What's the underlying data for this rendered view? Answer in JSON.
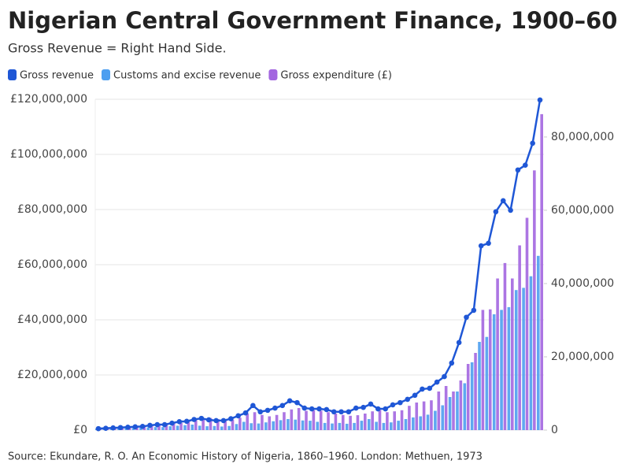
{
  "chart_data": {
    "type": "bar",
    "title": "Nigerian Central Government Finance, 1900–60",
    "subtitle": "Gross Revenue = Right Hand Side.",
    "source": "Source: Ekundare, R. O. An Economic History of Nigeria, 1860–1960. London: Methuen, 1973",
    "categories": [
      null,
      null,
      null,
      null,
      null,
      null,
      null,
      null,
      null,
      null,
      null,
      null,
      null,
      null,
      null,
      null,
      null,
      null,
      null,
      null,
      null,
      null,
      null,
      null,
      null,
      null,
      null,
      null,
      null,
      null,
      null,
      null,
      null,
      null,
      null,
      null,
      null,
      null,
      null,
      null,
      null,
      null,
      null,
      null,
      null,
      null,
      null,
      null,
      null,
      null,
      null,
      null,
      null,
      null,
      null,
      null,
      null,
      null,
      null,
      null,
      null
    ],
    "ylim": [
      0,
      120000000
    ],
    "yticks": [
      {
        "value": 0,
        "label": "£0"
      },
      {
        "value": 20000000,
        "label": "£20,000,000"
      },
      {
        "value": 40000000,
        "label": "£40,000,000"
      },
      {
        "value": 60000000,
        "label": "£60,000,000"
      },
      {
        "value": 80000000,
        "label": "£80,000,000"
      },
      {
        "value": 100000000,
        "label": "£100,000,000"
      },
      {
        "value": 120000000,
        "label": "£120,000,000"
      }
    ],
    "y2lim": [
      0,
      90300000
    ],
    "y2ticks": [
      0,
      {
        "value": 20000000,
        "label": "20,000,000"
      },
      {
        "value": 40000000,
        "label": "40,000,000"
      },
      {
        "value": 60000000,
        "label": "60,000,000"
      },
      {
        "value": 80000000,
        "label": "80,000,000"
      }
    ],
    "grid": true,
    "series": [
      {
        "name": "Gross revenue",
        "type": "line",
        "axis": "y2",
        "color": "#1f57d6",
        "values": [
          400000,
          500000,
          600000,
          700000,
          800000,
          900000,
          1000000,
          1300000,
          1500000,
          1500000,
          1900000,
          2300000,
          2400000,
          2900000,
          3200000,
          2800000,
          2600000,
          2600000,
          3100000,
          3900000,
          4700000,
          6700000,
          5000000,
          5400000,
          6000000,
          6700000,
          8000000,
          7500000,
          6000000,
          5800000,
          5800000,
          5600000,
          5000000,
          5000000,
          5000000,
          6000000,
          6200000,
          7100000,
          5800000,
          5800000,
          6900000,
          7500000,
          8400000,
          9500000,
          11200000,
          11400000,
          13100000,
          14600000,
          18300000,
          23900000,
          30800000,
          32700000,
          50300000,
          51000000,
          59600000,
          62600000,
          60000000,
          71000000,
          72300000,
          78300000,
          90100000
        ]
      },
      {
        "name": "Customs and excise revenue",
        "type": "bar",
        "color": "#4d9ff0",
        "values": [
          500000,
          600000,
          600000,
          700000,
          800000,
          800000,
          900000,
          1000000,
          1100000,
          1100000,
          1400000,
          1600000,
          1800000,
          2000000,
          1600000,
          1400000,
          1500000,
          1300000,
          1500000,
          2200000,
          3000000,
          2500000,
          2400000,
          2800000,
          3200000,
          3600000,
          4000000,
          3800000,
          3500000,
          3400000,
          3000000,
          2600000,
          2400000,
          2600000,
          2300000,
          2600000,
          3400000,
          4000000,
          3000000,
          2600000,
          2800000,
          3400000,
          4000000,
          4600000,
          5000000,
          5600000,
          7000000,
          9000000,
          12000000,
          14000000,
          17000000,
          24600000,
          32000000,
          33800000,
          42000000,
          43600000,
          44600000,
          50800000,
          51600000,
          55800000,
          63200000
        ]
      },
      {
        "name": "Gross expenditure (£)",
        "type": "bar",
        "color": "#a366e0",
        "values": [
          700000,
          800000,
          900000,
          1000000,
          1200000,
          1400000,
          1500000,
          1800000,
          2000000,
          2200000,
          2400000,
          2600000,
          3200000,
          3600000,
          4200000,
          4400000,
          4000000,
          3500000,
          3800000,
          4500000,
          6000000,
          6500000,
          5500000,
          5000000,
          5500000,
          6500000,
          7500000,
          8000000,
          7000000,
          7200000,
          7000000,
          6500000,
          6000000,
          5500000,
          5200000,
          5400000,
          6000000,
          6800000,
          7200000,
          6500000,
          6800000,
          7200000,
          8800000,
          10000000,
          10400000,
          10800000,
          14000000,
          16000000,
          14000000,
          18000000,
          24000000,
          28000000,
          43600000,
          43800000,
          55000000,
          60600000,
          55000000,
          67000000,
          77000000,
          94200000,
          114600000
        ]
      }
    ]
  }
}
